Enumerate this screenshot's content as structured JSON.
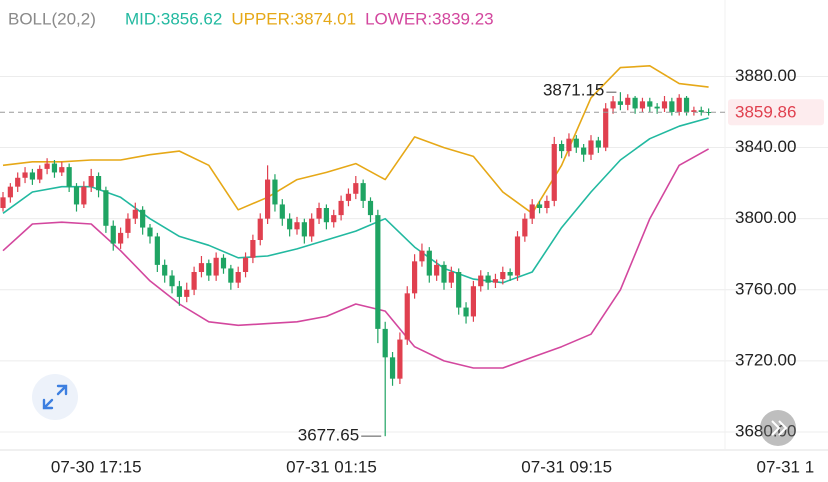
{
  "chart_data": {
    "type": "candlestick",
    "indicator": "BOLL(20,2)",
    "bands": [
      {
        "name": "MID:",
        "color": "#22b9a0",
        "value": 3856.62,
        "values": [
          3803,
          3815,
          3818,
          3818,
          3812,
          3800,
          3790,
          3785,
          3778,
          3779,
          3783,
          3788,
          3793,
          3800,
          3784,
          3772,
          3766,
          3764,
          3770,
          3795,
          3815,
          3833,
          3845,
          3852,
          3856.62
        ]
      },
      {
        "name": "UPPER:",
        "color": "#e6a817",
        "value": 3874.01,
        "values": [
          3830,
          3832,
          3832,
          3833,
          3833,
          3836,
          3838,
          3830,
          3805,
          3812,
          3822,
          3826,
          3831,
          3822,
          3846,
          3840,
          3835,
          3815,
          3803,
          3830,
          3868,
          3885,
          3886,
          3876,
          3874.01
        ]
      },
      {
        "name": "LOWER:",
        "color": "#d3479e",
        "value": 3839.23,
        "values": [
          3782,
          3797,
          3798,
          3797,
          3782,
          3765,
          3752,
          3742,
          3740,
          3741,
          3742,
          3745,
          3752,
          3748,
          3728,
          3720,
          3716,
          3716,
          3722,
          3728,
          3735,
          3760,
          3800,
          3830,
          3839.23
        ]
      }
    ],
    "band_x": [
      0,
      4,
      8,
      12,
      16,
      20,
      24,
      28,
      32,
      36,
      40,
      44,
      48,
      52,
      56,
      60,
      64,
      68,
      72,
      76,
      80,
      84,
      88,
      92,
      96
    ],
    "ohlc": [
      [
        3806,
        3815,
        3804,
        3812
      ],
      [
        3812,
        3820,
        3809,
        3818
      ],
      [
        3818,
        3826,
        3815,
        3823
      ],
      [
        3823,
        3829,
        3820,
        3826
      ],
      [
        3826,
        3828,
        3819,
        3822
      ],
      [
        3822,
        3830,
        3820,
        3828
      ],
      [
        3828,
        3834,
        3825,
        3831
      ],
      [
        3831,
        3833,
        3823,
        3826
      ],
      [
        3826,
        3832,
        3824,
        3829
      ],
      [
        3829,
        3831,
        3815,
        3818
      ],
      [
        3818,
        3820,
        3804,
        3808
      ],
      [
        3808,
        3821,
        3806,
        3818
      ],
      [
        3818,
        3828,
        3815,
        3824
      ],
      [
        3824,
        3826,
        3812,
        3816
      ],
      [
        3816,
        3818,
        3792,
        3796
      ],
      [
        3796,
        3799,
        3782,
        3786
      ],
      [
        3786,
        3795,
        3783,
        3792
      ],
      [
        3792,
        3803,
        3789,
        3800
      ],
      [
        3800,
        3809,
        3797,
        3805
      ],
      [
        3805,
        3807,
        3791,
        3795
      ],
      [
        3795,
        3797,
        3786,
        3790
      ],
      [
        3790,
        3792,
        3770,
        3774
      ],
      [
        3774,
        3777,
        3764,
        3768
      ],
      [
        3768,
        3771,
        3758,
        3762
      ],
      [
        3762,
        3765,
        3751,
        3756
      ],
      [
        3756,
        3764,
        3753,
        3760
      ],
      [
        3760,
        3773,
        3757,
        3770
      ],
      [
        3770,
        3779,
        3767,
        3775
      ],
      [
        3775,
        3777,
        3765,
        3768
      ],
      [
        3768,
        3781,
        3765,
        3778
      ],
      [
        3778,
        3780,
        3769,
        3772
      ],
      [
        3772,
        3774,
        3760,
        3764
      ],
      [
        3764,
        3773,
        3761,
        3770
      ],
      [
        3770,
        3781,
        3767,
        3778
      ],
      [
        3778,
        3791,
        3775,
        3788
      ],
      [
        3788,
        3803,
        3785,
        3800
      ],
      [
        3800,
        3830,
        3797,
        3822
      ],
      [
        3822,
        3825,
        3804,
        3808
      ],
      [
        3808,
        3811,
        3796,
        3800
      ],
      [
        3800,
        3803,
        3790,
        3794
      ],
      [
        3794,
        3801,
        3791,
        3798
      ],
      [
        3798,
        3800,
        3786,
        3790
      ],
      [
        3790,
        3803,
        3787,
        3800
      ],
      [
        3800,
        3809,
        3797,
        3806
      ],
      [
        3806,
        3808,
        3794,
        3798
      ],
      [
        3798,
        3805,
        3795,
        3802
      ],
      [
        3802,
        3813,
        3799,
        3810
      ],
      [
        3810,
        3817,
        3807,
        3814
      ],
      [
        3814,
        3824,
        3811,
        3820
      ],
      [
        3820,
        3822,
        3806,
        3810
      ],
      [
        3810,
        3812,
        3798,
        3802
      ],
      [
        3802,
        3805,
        3730,
        3738
      ],
      [
        3738,
        3742,
        3677.65,
        3722
      ],
      [
        3722,
        3725,
        3706,
        3710
      ],
      [
        3710,
        3736,
        3707,
        3732
      ],
      [
        3732,
        3762,
        3729,
        3758
      ],
      [
        3758,
        3780,
        3755,
        3776
      ],
      [
        3776,
        3786,
        3773,
        3782
      ],
      [
        3782,
        3784,
        3764,
        3768
      ],
      [
        3768,
        3777,
        3765,
        3774
      ],
      [
        3774,
        3776,
        3760,
        3764
      ],
      [
        3764,
        3773,
        3761,
        3770
      ],
      [
        3770,
        3772,
        3746,
        3750
      ],
      [
        3750,
        3753,
        3741,
        3745
      ],
      [
        3745,
        3765,
        3742,
        3762
      ],
      [
        3762,
        3771,
        3759,
        3768
      ],
      [
        3768,
        3770,
        3760,
        3764
      ],
      [
        3764,
        3769,
        3761,
        3766
      ],
      [
        3766,
        3773,
        3763,
        3770
      ],
      [
        3770,
        3772,
        3765,
        3768
      ],
      [
        3768,
        3793,
        3765,
        3790
      ],
      [
        3790,
        3803,
        3787,
        3800
      ],
      [
        3800,
        3811,
        3797,
        3808
      ],
      [
        3808,
        3810,
        3803,
        3806
      ],
      [
        3806,
        3813,
        3803,
        3810
      ],
      [
        3810,
        3846,
        3807,
        3842
      ],
      [
        3842,
        3844,
        3834,
        3838
      ],
      [
        3838,
        3848,
        3835,
        3845
      ],
      [
        3845,
        3847,
        3837,
        3840
      ],
      [
        3840,
        3842,
        3832,
        3836
      ],
      [
        3836,
        3847,
        3833,
        3844
      ],
      [
        3844,
        3846,
        3837,
        3840
      ],
      [
        3840,
        3865,
        3838,
        3862
      ],
      [
        3862,
        3869,
        3859,
        3866
      ],
      [
        3866,
        3871.15,
        3861,
        3864
      ],
      [
        3864,
        3870,
        3861,
        3868
      ],
      [
        3868,
        3869,
        3859,
        3862
      ],
      [
        3862,
        3868,
        3860,
        3866
      ],
      [
        3866,
        3868,
        3860,
        3863
      ],
      [
        3863,
        3865,
        3859,
        3862
      ],
      [
        3862,
        3869,
        3860,
        3866
      ],
      [
        3866,
        3868,
        3858,
        3860
      ],
      [
        3860,
        3870,
        3858,
        3868
      ],
      [
        3868,
        3869,
        3858,
        3860
      ],
      [
        3860,
        3863,
        3858,
        3861
      ],
      [
        3861,
        3863,
        3858,
        3860
      ],
      [
        3860,
        3862,
        3858,
        3859.86
      ]
    ],
    "up_color": "#e0404f",
    "down_color": "#1fa463",
    "max_label": 3871.15,
    "min_label": 3677.65,
    "last_price": 3859.86,
    "ylim": [
      3671,
      3923
    ],
    "yticks": [
      {
        "value": 3680,
        "label": "3680.00"
      },
      {
        "value": 3720,
        "label": "3720.00"
      },
      {
        "value": 3760,
        "label": "3760.00"
      },
      {
        "value": 3800,
        "label": "3800.00"
      },
      {
        "value": 3840,
        "label": "3840.00"
      },
      {
        "value": 3880,
        "label": "3880.00"
      }
    ],
    "xticks": [
      {
        "value": 14,
        "label": "07-30 17:15"
      },
      {
        "value": 46,
        "label": "07-31 01:15"
      },
      {
        "value": 78,
        "label": "07-31 09:15"
      },
      {
        "value": 110,
        "label": "07-31 1"
      }
    ],
    "grid": true
  }
}
